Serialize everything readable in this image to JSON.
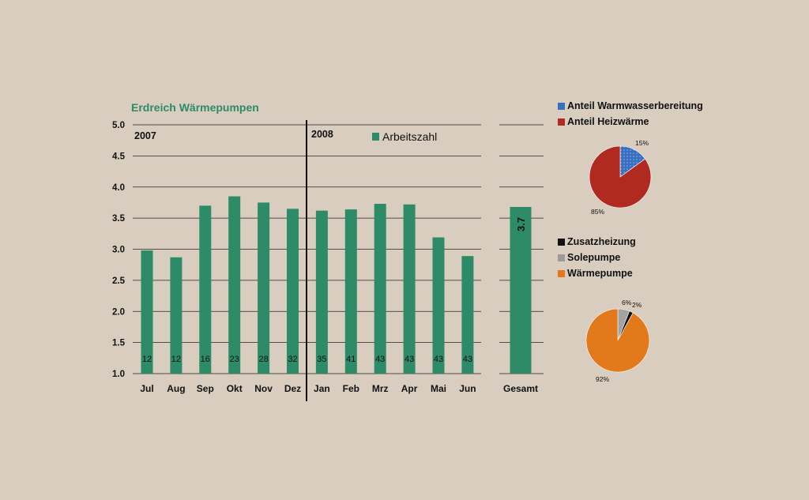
{
  "chart_data": [
    {
      "type": "bar",
      "title": "Erdreich Wärmepumpen",
      "categories": [
        "Jul",
        "Aug",
        "Sep",
        "Okt",
        "Nov",
        "Dez",
        "Jan",
        "Feb",
        "Mrz",
        "Apr",
        "Mai",
        "Jun"
      ],
      "series": [
        {
          "name": "Arbeitszahl",
          "color": "#2e8b68",
          "values": [
            2.98,
            2.87,
            3.7,
            3.85,
            3.75,
            3.65,
            3.62,
            3.64,
            3.73,
            3.72,
            3.19,
            2.89
          ]
        }
      ],
      "bar_labels": [
        "12",
        "12",
        "16",
        "23",
        "28",
        "32",
        "35",
        "41",
        "43",
        "43",
        "43",
        "43"
      ],
      "year_labels": [
        {
          "text": "2007",
          "start_index": 0
        },
        {
          "text": "2008",
          "start_index": 6
        }
      ],
      "total": {
        "category": "Gesamt",
        "value": 3.68,
        "label": "3.7"
      },
      "ylim": [
        1.0,
        5.0
      ],
      "yticks": [
        "1.0",
        "1.5",
        "2.0",
        "2.5",
        "3.0",
        "3.5",
        "4.0",
        "4.5",
        "5.0"
      ],
      "grid": true,
      "legend_position": "top-right"
    },
    {
      "type": "pie",
      "legend": [
        {
          "name": "Anteil Warmwasserbereitung",
          "color": "#3a6fbf"
        },
        {
          "name": "Anteil Heizwärme",
          "color": "#b02a22"
        }
      ],
      "slices": [
        {
          "name": "Anteil Warmwasserbereitung",
          "value": 15,
          "label": "15%",
          "color": "#3a6fbf"
        },
        {
          "name": "Anteil Heizwärme",
          "value": 85,
          "label": "85%",
          "color": "#b02a22"
        }
      ]
    },
    {
      "type": "pie",
      "legend": [
        {
          "name": "Zusatzheizung",
          "color": "#111111"
        },
        {
          "name": "Solepumpe",
          "color": "#9a9a9a"
        },
        {
          "name": "Wärmepumpe",
          "color": "#e2791b"
        }
      ],
      "slices": [
        {
          "name": "Solepumpe",
          "value": 6,
          "label": "6%",
          "color": "#a3a3a3"
        },
        {
          "name": "Zusatzheizung",
          "value": 2,
          "label": "2%",
          "color": "#111111"
        },
        {
          "name": "Wärmepumpe",
          "value": 92,
          "label": "92%",
          "color": "#e2791b"
        }
      ]
    }
  ]
}
